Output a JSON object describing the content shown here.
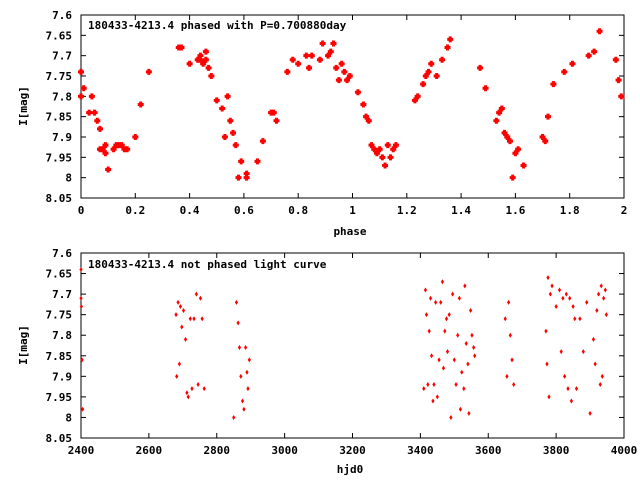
{
  "chart_data": [
    {
      "type": "scatter",
      "title": "180433-4213.4 phased with P=0.700880day",
      "xlabel": "phase",
      "ylabel": "I[mag]",
      "xlim": [
        0,
        2
      ],
      "ylim": [
        8.05,
        7.6
      ],
      "y_inverted": true,
      "xticks": [
        "0",
        "0.2",
        "0.4",
        "0.6",
        "0.8",
        "1",
        "1.2",
        "1.4",
        "1.6",
        "1.8",
        "2"
      ],
      "yticks": [
        "7.6",
        "7.65",
        "7.7",
        "7.75",
        "7.8",
        "7.85",
        "7.9",
        "7.95",
        "8",
        "8.05"
      ],
      "grid": false,
      "marker_color": "#ff0000",
      "series": [
        {
          "points": [
            [
              0.0,
              7.74
            ],
            [
              0.0,
              7.8
            ],
            [
              0.01,
              7.78
            ],
            [
              0.03,
              7.84
            ],
            [
              0.04,
              7.8
            ],
            [
              0.05,
              7.84
            ],
            [
              0.06,
              7.86
            ],
            [
              0.07,
              7.93
            ],
            [
              0.07,
              7.88
            ],
            [
              0.08,
              7.93
            ],
            [
              0.09,
              7.92
            ],
            [
              0.09,
              7.94
            ],
            [
              0.1,
              7.98
            ],
            [
              0.12,
              7.93
            ],
            [
              0.13,
              7.92
            ],
            [
              0.14,
              7.92
            ],
            [
              0.15,
              7.92
            ],
            [
              0.16,
              7.93
            ],
            [
              0.17,
              7.93
            ],
            [
              0.2,
              7.9
            ],
            [
              0.22,
              7.82
            ],
            [
              0.25,
              7.74
            ],
            [
              0.36,
              7.68
            ],
            [
              0.37,
              7.68
            ],
            [
              0.4,
              7.72
            ],
            [
              0.43,
              7.71
            ],
            [
              0.44,
              7.7
            ],
            [
              0.44,
              7.71
            ],
            [
              0.45,
              7.72
            ],
            [
              0.46,
              7.69
            ],
            [
              0.46,
              7.71
            ],
            [
              0.47,
              7.73
            ],
            [
              0.48,
              7.75
            ],
            [
              0.5,
              7.81
            ],
            [
              0.52,
              7.83
            ],
            [
              0.53,
              7.9
            ],
            [
              0.54,
              7.8
            ],
            [
              0.55,
              7.86
            ],
            [
              0.56,
              7.89
            ],
            [
              0.57,
              7.92
            ],
            [
              0.58,
              8.0
            ],
            [
              0.59,
              7.96
            ],
            [
              0.61,
              7.99
            ],
            [
              0.61,
              8.0
            ],
            [
              0.65,
              7.96
            ],
            [
              0.67,
              7.91
            ],
            [
              0.7,
              7.84
            ],
            [
              0.71,
              7.84
            ],
            [
              0.72,
              7.86
            ],
            [
              0.76,
              7.74
            ],
            [
              0.78,
              7.71
            ],
            [
              0.8,
              7.72
            ],
            [
              0.83,
              7.7
            ],
            [
              0.84,
              7.73
            ],
            [
              0.85,
              7.7
            ],
            [
              0.88,
              7.71
            ],
            [
              0.89,
              7.67
            ],
            [
              0.91,
              7.7
            ],
            [
              0.92,
              7.69
            ],
            [
              0.93,
              7.67
            ],
            [
              0.94,
              7.73
            ],
            [
              0.95,
              7.76
            ],
            [
              0.96,
              7.72
            ],
            [
              0.97,
              7.74
            ],
            [
              0.98,
              7.76
            ],
            [
              0.99,
              7.75
            ],
            [
              1.02,
              7.79
            ],
            [
              1.04,
              7.82
            ],
            [
              1.05,
              7.85
            ],
            [
              1.06,
              7.86
            ],
            [
              1.07,
              7.92
            ],
            [
              1.08,
              7.93
            ],
            [
              1.09,
              7.94
            ],
            [
              1.1,
              7.93
            ],
            [
              1.11,
              7.95
            ],
            [
              1.12,
              7.97
            ],
            [
              1.13,
              7.92
            ],
            [
              1.14,
              7.95
            ],
            [
              1.15,
              7.93
            ],
            [
              1.16,
              7.92
            ],
            [
              1.23,
              7.81
            ],
            [
              1.24,
              7.8
            ],
            [
              1.26,
              7.77
            ],
            [
              1.27,
              7.75
            ],
            [
              1.28,
              7.74
            ],
            [
              1.29,
              7.72
            ],
            [
              1.31,
              7.75
            ],
            [
              1.33,
              7.71
            ],
            [
              1.35,
              7.68
            ],
            [
              1.36,
              7.66
            ],
            [
              1.47,
              7.73
            ],
            [
              1.49,
              7.78
            ],
            [
              1.53,
              7.86
            ],
            [
              1.54,
              7.84
            ],
            [
              1.55,
              7.83
            ],
            [
              1.56,
              7.89
            ],
            [
              1.57,
              7.9
            ],
            [
              1.58,
              7.91
            ],
            [
              1.59,
              8.0
            ],
            [
              1.6,
              7.94
            ],
            [
              1.61,
              7.93
            ],
            [
              1.63,
              7.97
            ],
            [
              1.7,
              7.9
            ],
            [
              1.71,
              7.91
            ],
            [
              1.72,
              7.85
            ],
            [
              1.74,
              7.77
            ],
            [
              1.78,
              7.74
            ],
            [
              1.81,
              7.72
            ],
            [
              1.87,
              7.7
            ],
            [
              1.89,
              7.69
            ],
            [
              1.91,
              7.64
            ],
            [
              1.97,
              7.71
            ],
            [
              1.98,
              7.76
            ],
            [
              1.99,
              7.8
            ]
          ]
        }
      ]
    },
    {
      "type": "scatter",
      "title": "180433-4213.4 not phased light curve",
      "xlabel": "hjd0",
      "ylabel": "I[mag]",
      "xlim": [
        2400,
        4000
      ],
      "ylim": [
        8.05,
        7.6
      ],
      "y_inverted": true,
      "xticks": [
        "2400",
        "2600",
        "2800",
        "3000",
        "3200",
        "3400",
        "3600",
        "3800",
        "4000"
      ],
      "yticks": [
        "7.6",
        "7.65",
        "7.7",
        "7.75",
        "7.8",
        "7.85",
        "7.9",
        "7.95",
        "8",
        "8.05"
      ],
      "grid": false,
      "marker_color": "#ff0000",
      "series": [
        {
          "points": [
            [
              2400,
              7.64
            ],
            [
              2400,
              7.71
            ],
            [
              2401,
              7.73
            ],
            [
              2403,
              7.86
            ],
            [
              2405,
              7.98
            ],
            [
              2680,
              7.75
            ],
            [
              2682,
              7.9
            ],
            [
              2686,
              7.72
            ],
            [
              2690,
              7.87
            ],
            [
              2693,
              7.73
            ],
            [
              2697,
              7.78
            ],
            [
              2702,
              7.74
            ],
            [
              2708,
              7.81
            ],
            [
              2712,
              7.94
            ],
            [
              2716,
              7.95
            ],
            [
              2722,
              7.76
            ],
            [
              2727,
              7.93
            ],
            [
              2733,
              7.76
            ],
            [
              2740,
              7.7
            ],
            [
              2745,
              7.92
            ],
            [
              2752,
              7.71
            ],
            [
              2757,
              7.76
            ],
            [
              2763,
              7.93
            ],
            [
              2850,
              8.0
            ],
            [
              2858,
              7.72
            ],
            [
              2863,
              7.77
            ],
            [
              2867,
              7.83
            ],
            [
              2871,
              7.9
            ],
            [
              2876,
              7.96
            ],
            [
              2880,
              7.98
            ],
            [
              2885,
              7.83
            ],
            [
              2889,
              7.89
            ],
            [
              2892,
              7.93
            ],
            [
              2896,
              7.86
            ],
            [
              3410,
              7.93
            ],
            [
              3415,
              7.69
            ],
            [
              3418,
              7.75
            ],
            [
              3422,
              7.92
            ],
            [
              3426,
              7.79
            ],
            [
              3430,
              7.71
            ],
            [
              3433,
              7.85
            ],
            [
              3437,
              7.96
            ],
            [
              3440,
              7.92
            ],
            [
              3445,
              7.72
            ],
            [
              3450,
              7.95
            ],
            [
              3455,
              7.86
            ],
            [
              3460,
              7.72
            ],
            [
              3465,
              7.67
            ],
            [
              3468,
              7.88
            ],
            [
              3472,
              7.79
            ],
            [
              3477,
              7.76
            ],
            [
              3480,
              7.84
            ],
            [
              3485,
              7.75
            ],
            [
              3490,
              8.0
            ],
            [
              3495,
              7.7
            ],
            [
              3500,
              7.86
            ],
            [
              3505,
              7.92
            ],
            [
              3510,
              7.8
            ],
            [
              3515,
              7.71
            ],
            [
              3518,
              7.98
            ],
            [
              3522,
              7.89
            ],
            [
              3528,
              7.93
            ],
            [
              3531,
              7.68
            ],
            [
              3535,
              7.82
            ],
            [
              3540,
              7.87
            ],
            [
              3543,
              7.99
            ],
            [
              3548,
              7.74
            ],
            [
              3552,
              7.8
            ],
            [
              3557,
              7.83
            ],
            [
              3560,
              7.85
            ],
            [
              3650,
              7.76
            ],
            [
              3655,
              7.9
            ],
            [
              3660,
              7.72
            ],
            [
              3665,
              7.8
            ],
            [
              3670,
              7.86
            ],
            [
              3675,
              7.92
            ],
            [
              3770,
              7.79
            ],
            [
              3773,
              7.87
            ],
            [
              3776,
              7.66
            ],
            [
              3779,
              7.95
            ],
            [
              3783,
              7.7
            ],
            [
              3788,
              7.68
            ],
            [
              3800,
              7.73
            ],
            [
              3810,
              7.69
            ],
            [
              3815,
              7.84
            ],
            [
              3820,
              7.71
            ],
            [
              3825,
              7.9
            ],
            [
              3830,
              7.7
            ],
            [
              3835,
              7.93
            ],
            [
              3840,
              7.71
            ],
            [
              3845,
              7.96
            ],
            [
              3850,
              7.73
            ],
            [
              3855,
              7.76
            ],
            [
              3860,
              7.93
            ],
            [
              3870,
              7.76
            ],
            [
              3880,
              7.84
            ],
            [
              3890,
              7.72
            ],
            [
              3900,
              7.99
            ],
            [
              3910,
              7.81
            ],
            [
              3915,
              7.87
            ],
            [
              3920,
              7.74
            ],
            [
              3925,
              7.7
            ],
            [
              3930,
              7.92
            ],
            [
              3933,
              7.68
            ],
            [
              3936,
              7.9
            ],
            [
              3940,
              7.71
            ],
            [
              3945,
              7.69
            ],
            [
              3948,
              7.75
            ]
          ]
        }
      ]
    }
  ]
}
